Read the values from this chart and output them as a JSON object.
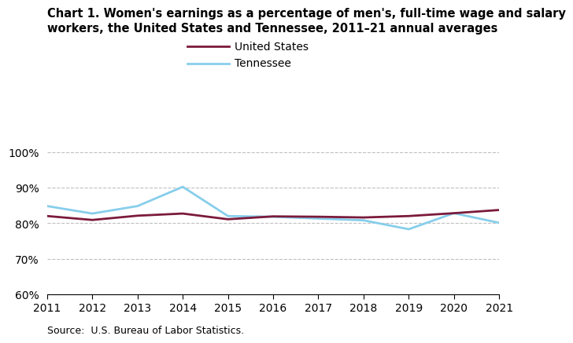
{
  "years": [
    2011,
    2012,
    2013,
    2014,
    2015,
    2016,
    2017,
    2018,
    2019,
    2020,
    2021
  ],
  "us_values": [
    82.0,
    80.9,
    82.1,
    82.7,
    81.1,
    81.9,
    81.8,
    81.6,
    82.0,
    82.8,
    83.7
  ],
  "tn_values": [
    84.8,
    82.7,
    84.8,
    90.2,
    82.0,
    81.8,
    81.3,
    80.8,
    78.3,
    82.8,
    80.1
  ],
  "us_color": "#7b1a3b",
  "tn_color": "#87ceeb",
  "title_line1": "Chart 1. Women's earnings as a percentage of men's, full-time wage and salary",
  "title_line2": "workers, the United States and Tennessee, 2011–21 annual averages",
  "us_label": "United States",
  "tn_label": "Tennessee",
  "source": "Source:  U.S. Bureau of Labor Statistics.",
  "ylim": [
    60,
    102
  ],
  "yticks": [
    60,
    70,
    80,
    90,
    100
  ],
  "ytick_labels": [
    "60%",
    "70%",
    "80%",
    "90%",
    "100%"
  ],
  "background_color": "#ffffff",
  "grid_color": "#c0c0c0",
  "linewidth": 2.0,
  "title_fontsize": 10.5,
  "tick_fontsize": 10,
  "source_fontsize": 9
}
